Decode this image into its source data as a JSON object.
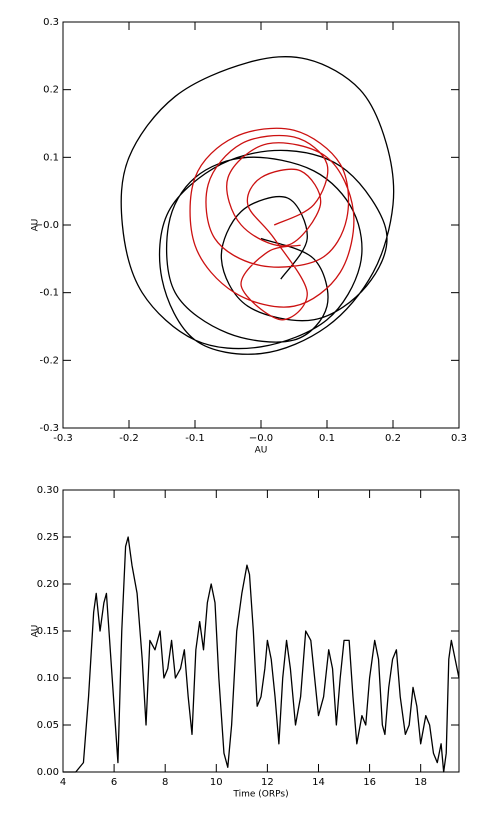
{
  "chart_data": [
    {
      "type": "line",
      "xlabel": "AU",
      "ylabel": "AU",
      "xlim": [
        -0.3,
        0.3
      ],
      "ylim": [
        -0.3,
        0.3
      ],
      "xticks": [
        -0.3,
        -0.2,
        -0.1,
        {
          "value": 0,
          "label": "−0.0"
        },
        0.1,
        0.2,
        0.3
      ],
      "yticks": [
        -0.3,
        -0.2,
        -0.1,
        {
          "value": 0,
          "label": "−0.0"
        },
        0.1,
        0.2,
        0.3
      ],
      "series": [
        {
          "color": "#000000",
          "x": [
            0.0,
            0.08,
            0.1,
            0.05,
            -0.05,
            -0.13,
            -0.14,
            -0.1,
            -0.02,
            0.08,
            0.14,
            0.15,
            0.1,
            0.0,
            -0.1,
            -0.18,
            -0.21,
            -0.2,
            -0.13,
            -0.02,
            0.07,
            0.15,
            0.19,
            0.2,
            0.17,
            0.1,
            0.0,
            -0.1,
            -0.15,
            -0.14,
            -0.06,
            0.04,
            0.13,
            0.19,
            0.16,
            0.08,
            -0.02,
            -0.06,
            -0.03,
            0.04,
            0.07,
            0.03
          ],
          "values": [
            -0.02,
            -0.05,
            -0.12,
            -0.17,
            -0.16,
            -0.1,
            0.0,
            0.07,
            0.1,
            0.08,
            0.02,
            -0.06,
            -0.14,
            -0.18,
            -0.17,
            -0.1,
            0.0,
            0.1,
            0.19,
            0.24,
            0.245,
            0.2,
            0.12,
            0.03,
            -0.07,
            -0.15,
            -0.19,
            -0.17,
            -0.08,
            0.02,
            0.09,
            0.11,
            0.08,
            -0.01,
            -0.09,
            -0.14,
            -0.12,
            -0.05,
            0.02,
            0.04,
            -0.02,
            -0.08
          ]
        },
        {
          "color": "#cc1111",
          "x": [
            0.02,
            0.08,
            0.1,
            0.05,
            -0.03,
            -0.08,
            -0.07,
            0.0,
            0.09,
            0.13,
            0.12,
            0.05,
            -0.04,
            -0.1,
            -0.1,
            -0.04,
            0.05,
            0.12,
            0.14,
            0.1,
            0.01,
            -0.05,
            -0.03,
            0.04,
            0.09,
            0.06,
            0.0,
            -0.02,
            0.02,
            0.07,
            0.03,
            -0.03,
            0.01,
            0.06
          ],
          "values": [
            0.0,
            0.03,
            0.09,
            0.13,
            0.12,
            0.06,
            -0.02,
            -0.06,
            -0.05,
            0.01,
            0.09,
            0.14,
            0.13,
            0.07,
            -0.03,
            -0.1,
            -0.12,
            -0.07,
            0.02,
            0.1,
            0.12,
            0.07,
            0.0,
            -0.03,
            0.03,
            0.08,
            0.07,
            0.03,
            -0.02,
            -0.1,
            -0.14,
            -0.09,
            -0.04,
            -0.03
          ]
        }
      ]
    },
    {
      "type": "line",
      "xlabel": "Time (ORPs)",
      "ylabel": "AU",
      "xlim": [
        4,
        19.5
      ],
      "ylim": [
        0,
        0.3
      ],
      "xticks": [
        4,
        6,
        8,
        10,
        12,
        14,
        16,
        18
      ],
      "yticks": [
        {
          "value": 0,
          "label": "0.00"
        },
        0.05,
        {
          "value": 0.1,
          "label": "0.10"
        },
        0.15,
        {
          "value": 0.2,
          "label": "0.20"
        },
        0.25,
        {
          "value": 0.3,
          "label": "0.30"
        }
      ],
      "series": [
        {
          "color": "#000000",
          "x": [
            4.0,
            4.5,
            4.8,
            5.0,
            5.2,
            5.3,
            5.45,
            5.6,
            5.7,
            5.85,
            6.0,
            6.15,
            6.3,
            6.45,
            6.55,
            6.7,
            6.9,
            7.1,
            7.25,
            7.4,
            7.6,
            7.8,
            7.95,
            8.1,
            8.25,
            8.4,
            8.6,
            8.75,
            8.9,
            9.05,
            9.2,
            9.35,
            9.5,
            9.65,
            9.8,
            9.95,
            10.1,
            10.3,
            10.45,
            10.6,
            10.8,
            11.0,
            11.2,
            11.3,
            11.45,
            11.6,
            11.75,
            11.9,
            12.0,
            12.15,
            12.3,
            12.45,
            12.6,
            12.75,
            12.9,
            13.1,
            13.3,
            13.5,
            13.7,
            13.85,
            14.0,
            14.2,
            14.4,
            14.55,
            14.7,
            14.85,
            15.0,
            15.2,
            15.35,
            15.5,
            15.7,
            15.85,
            16.0,
            16.2,
            16.35,
            16.5,
            16.6,
            16.75,
            16.9,
            17.05,
            17.2,
            17.4,
            17.55,
            17.7,
            17.85,
            18.0,
            18.2,
            18.35,
            18.5,
            18.65,
            18.8,
            18.9,
            19.0,
            19.1,
            19.2,
            19.35,
            19.5
          ],
          "values": [
            0,
            0,
            0.01,
            0.08,
            0.17,
            0.19,
            0.15,
            0.18,
            0.19,
            0.13,
            0.07,
            0.01,
            0.15,
            0.24,
            0.25,
            0.22,
            0.19,
            0.12,
            0.05,
            0.14,
            0.13,
            0.15,
            0.1,
            0.11,
            0.14,
            0.1,
            0.11,
            0.13,
            0.08,
            0.04,
            0.13,
            0.16,
            0.13,
            0.18,
            0.2,
            0.18,
            0.1,
            0.02,
            0.005,
            0.05,
            0.15,
            0.19,
            0.22,
            0.21,
            0.15,
            0.07,
            0.08,
            0.11,
            0.14,
            0.12,
            0.08,
            0.03,
            0.1,
            0.14,
            0.11,
            0.05,
            0.08,
            0.15,
            0.14,
            0.1,
            0.06,
            0.08,
            0.13,
            0.11,
            0.05,
            0.1,
            0.14,
            0.14,
            0.08,
            0.03,
            0.06,
            0.05,
            0.1,
            0.14,
            0.12,
            0.05,
            0.04,
            0.09,
            0.12,
            0.13,
            0.08,
            0.04,
            0.05,
            0.09,
            0.07,
            0.03,
            0.06,
            0.05,
            0.02,
            0.01,
            0.03,
            0,
            0.02,
            0.12,
            0.14,
            0.12,
            0.1
          ]
        }
      ]
    }
  ]
}
